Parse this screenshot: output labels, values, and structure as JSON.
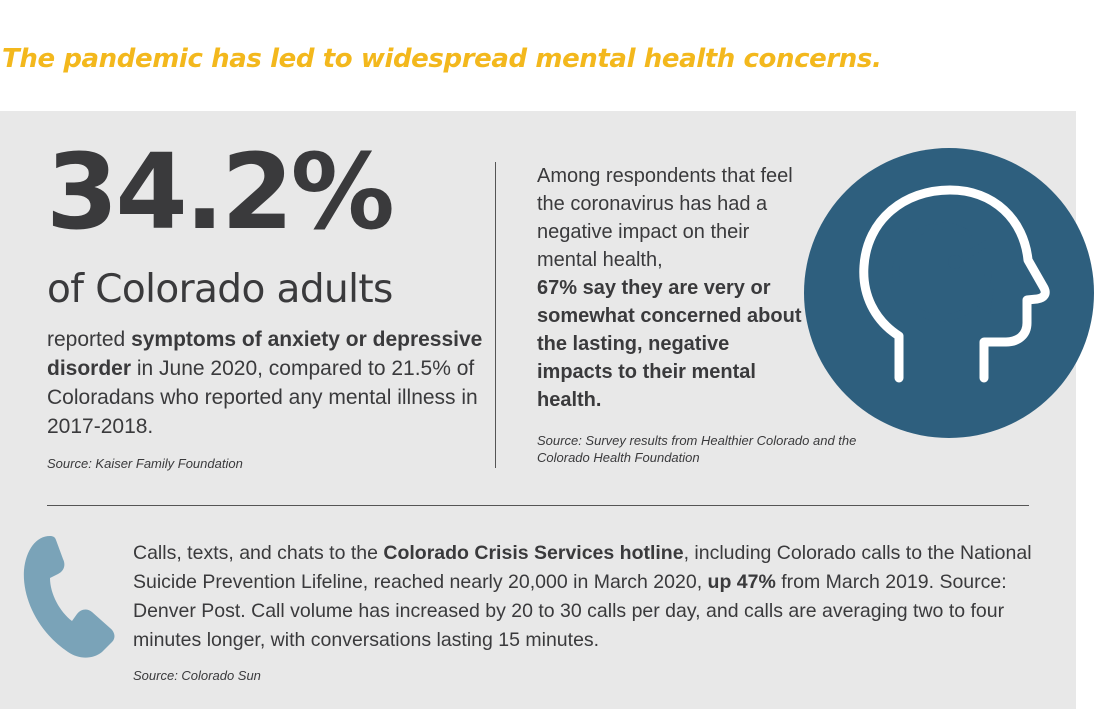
{
  "headline": "The pandemic has led to widespread mental health concerns.",
  "left": {
    "stat": "34.2%",
    "stat_subject": "of Colorado adults",
    "body_1": "reported ",
    "body_bold": "symptoms of anxiety or depressive disorder",
    "body_2": " in June 2020, compared to 21.5% of Coloradans who reported any mental illness in 2017-2018.",
    "source": "Source: Kaiser Family Foundation"
  },
  "right": {
    "body_1": "Among respondents that feel the coronavirus has had a negative impact on their mental health,",
    "body_bold": "67% say they are very or somewhat concerned about the lasting, negative impacts to their mental health.",
    "source": "Source: Survey results from Healthier Colorado and the Colorado Health Foundation"
  },
  "bottom": {
    "body_1": "Calls, texts, and chats to the ",
    "body_bold_1": "Colorado Crisis Services hotline",
    "body_2": ", including Colorado calls to the National Suicide Prevention Lifeline, reached nearly 20,000 in March 2020, ",
    "body_bold_2": "up 47%",
    "body_3": " from March 2019. Source: Denver Post. Call volume has increased by 20 to 30 calls per day, and calls are averaging two to four minutes longer, with conversations lasting 15 minutes.",
    "source": "Source: Colorado Sun"
  },
  "icons": {
    "head": "head-with-clock-icon",
    "phone": "phone-handset-icon"
  },
  "colors": {
    "headline": "#f3b81d",
    "panel": "#e8e8e8",
    "text": "#3a3a3c",
    "head_circle": "#2e5f7e",
    "phone": "#7aa3b8"
  }
}
